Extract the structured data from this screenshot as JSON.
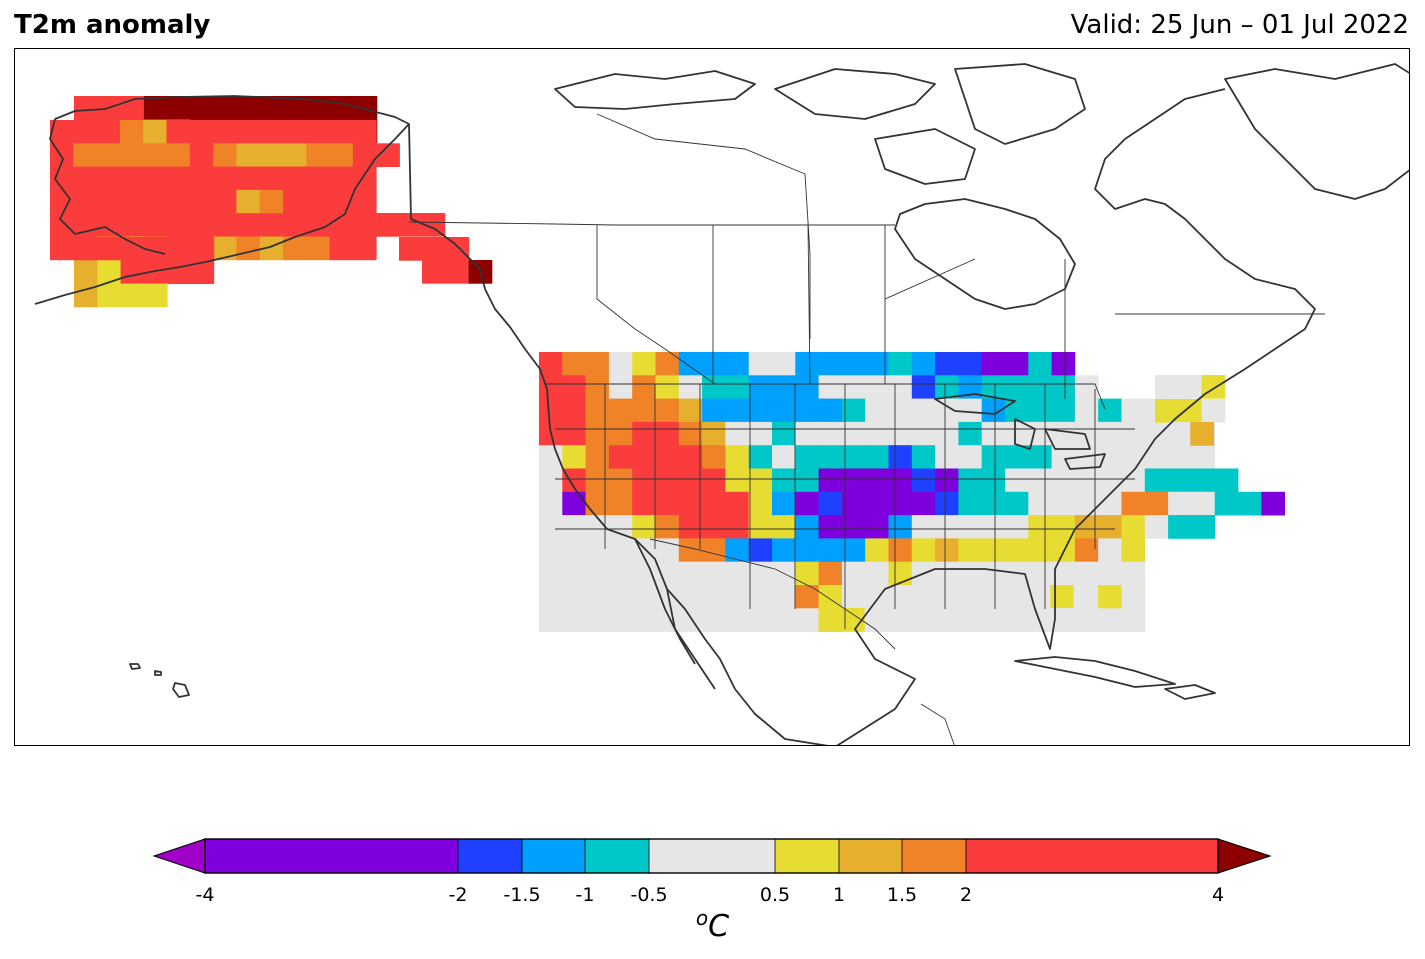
{
  "header": {
    "title": "T2m anomaly",
    "valid": "Valid: 25 Jun – 01 Jul 2022"
  },
  "colorbar": {
    "unit_main": "C",
    "unit_sup": "o",
    "ticks": [
      "-4",
      "-2",
      "-1.5",
      "-1",
      "-0.5",
      "0.5",
      "1",
      "1.5",
      "2",
      "4"
    ],
    "bins": [
      {
        "from": -4,
        "to": -2,
        "color": "#7e00dc"
      },
      {
        "from": -2,
        "to": -1.5,
        "color": "#2040ff"
      },
      {
        "from": -1.5,
        "to": -1,
        "color": "#00a0ff"
      },
      {
        "from": -1,
        "to": -0.5,
        "color": "#00c8c8"
      },
      {
        "from": -0.5,
        "to": 0.5,
        "color": "#e6e6e6"
      },
      {
        "from": 0.5,
        "to": 1,
        "color": "#e6dc32"
      },
      {
        "from": 1,
        "to": 1.5,
        "color": "#e6af2d"
      },
      {
        "from": 1.5,
        "to": 2,
        "color": "#f08228"
      },
      {
        "from": 2,
        "to": 4,
        "color": "#fa3c3c"
      }
    ],
    "under_color": "#a000c8",
    "over_color": "#8c0000"
  }
}
